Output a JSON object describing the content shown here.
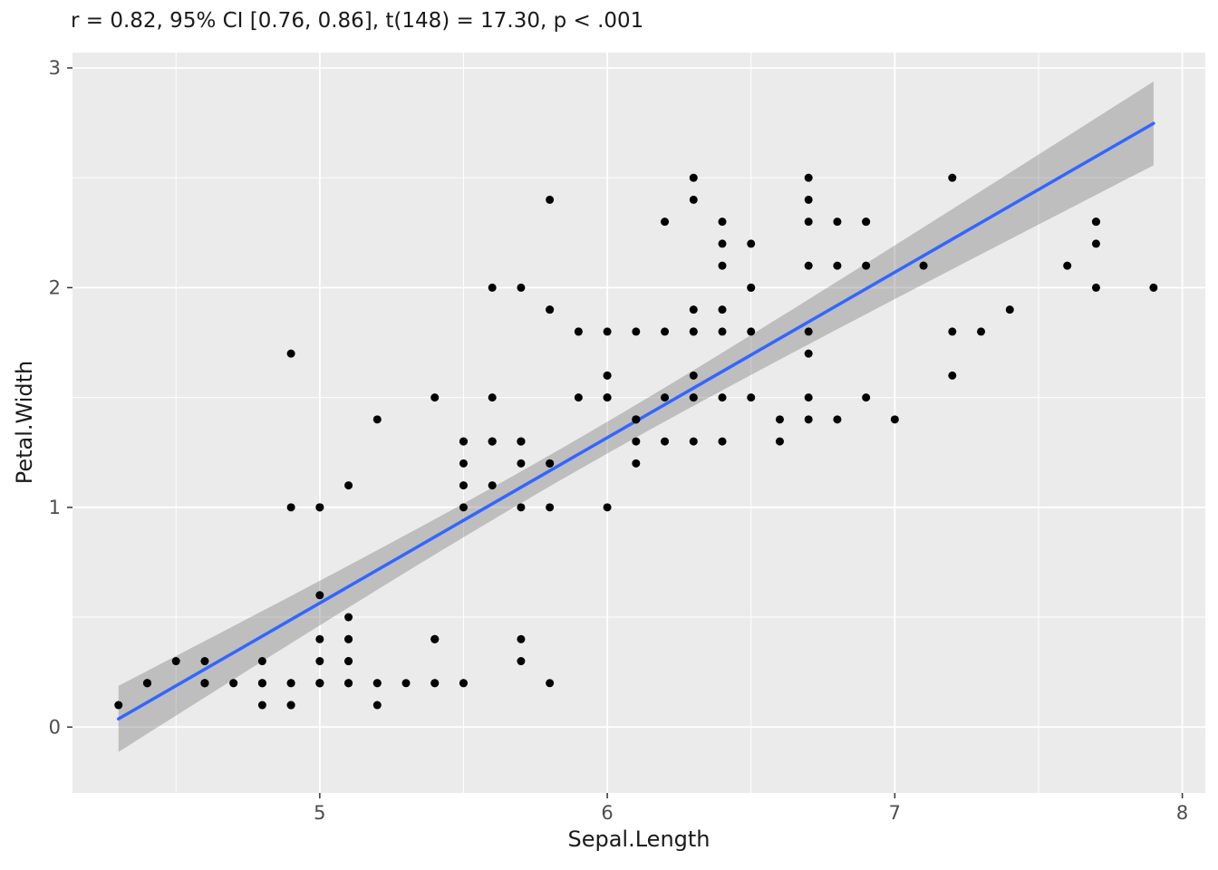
{
  "figure": {
    "subtitle": "r = 0.82, 95% CI [0.76, 0.86], t(148) = 17.30, p < .001"
  },
  "chart_data": {
    "type": "scatter",
    "title": "r = 0.82, 95% CI [0.76, 0.86], t(148) = 17.30, p < .001",
    "xlabel": "Sepal.Length",
    "ylabel": "Petal.Width",
    "xlim": [
      4.14,
      8.08
    ],
    "ylim": [
      -0.3,
      3.07
    ],
    "x_ticks": [
      5,
      6,
      7,
      8
    ],
    "y_ticks": [
      0,
      1,
      2,
      3
    ],
    "x_minor_ticks": [
      4.5,
      5.5,
      6.5,
      7.5
    ],
    "y_minor_ticks": [
      0.5,
      1.5,
      2.5
    ],
    "grid": true,
    "legend": "none",
    "stats": {
      "r": 0.82,
      "ci_level": 0.95,
      "ci_low": 0.76,
      "ci_high": 0.86,
      "df": 148,
      "t": 17.3,
      "p": "< .001"
    },
    "regression": {
      "slope": 0.7529,
      "intercept": -3.2002,
      "x_range": [
        4.3,
        7.9
      ],
      "ci": {
        "level": 0.95,
        "t_crit": 1.976,
        "n": 150,
        "mean_x": 5.8433,
        "sxx": 102.17,
        "residual_se": 0.44
      }
    },
    "points": [
      [
        5.1,
        0.2
      ],
      [
        4.9,
        0.2
      ],
      [
        4.7,
        0.2
      ],
      [
        4.6,
        0.2
      ],
      [
        5.0,
        0.2
      ],
      [
        5.4,
        0.4
      ],
      [
        4.6,
        0.3
      ],
      [
        5.0,
        0.2
      ],
      [
        4.4,
        0.2
      ],
      [
        4.9,
        0.1
      ],
      [
        5.4,
        0.2
      ],
      [
        4.8,
        0.2
      ],
      [
        4.8,
        0.1
      ],
      [
        4.3,
        0.1
      ],
      [
        5.8,
        0.2
      ],
      [
        5.7,
        0.4
      ],
      [
        5.4,
        0.4
      ],
      [
        5.1,
        0.3
      ],
      [
        5.7,
        0.3
      ],
      [
        5.1,
        0.3
      ],
      [
        5.4,
        0.2
      ],
      [
        5.1,
        0.4
      ],
      [
        4.6,
        0.2
      ],
      [
        5.1,
        0.5
      ],
      [
        4.8,
        0.2
      ],
      [
        5.0,
        0.2
      ],
      [
        5.0,
        0.4
      ],
      [
        5.2,
        0.2
      ],
      [
        5.2,
        0.2
      ],
      [
        4.7,
        0.2
      ],
      [
        4.8,
        0.2
      ],
      [
        5.4,
        0.4
      ],
      [
        5.2,
        0.1
      ],
      [
        5.5,
        0.2
      ],
      [
        4.9,
        0.2
      ],
      [
        5.0,
        0.2
      ],
      [
        5.5,
        0.2
      ],
      [
        4.9,
        0.1
      ],
      [
        4.4,
        0.2
      ],
      [
        5.1,
        0.2
      ],
      [
        5.0,
        0.3
      ],
      [
        4.5,
        0.3
      ],
      [
        4.4,
        0.2
      ],
      [
        5.0,
        0.6
      ],
      [
        5.1,
        0.4
      ],
      [
        4.8,
        0.3
      ],
      [
        5.1,
        0.2
      ],
      [
        4.6,
        0.2
      ],
      [
        5.3,
        0.2
      ],
      [
        5.0,
        0.2
      ],
      [
        7.0,
        1.4
      ],
      [
        6.4,
        1.5
      ],
      [
        6.9,
        1.5
      ],
      [
        5.5,
        1.3
      ],
      [
        6.5,
        1.5
      ],
      [
        5.7,
        1.3
      ],
      [
        6.3,
        1.6
      ],
      [
        4.9,
        1.0
      ],
      [
        6.6,
        1.3
      ],
      [
        5.2,
        1.4
      ],
      [
        5.0,
        1.0
      ],
      [
        5.9,
        1.5
      ],
      [
        6.0,
        1.0
      ],
      [
        6.1,
        1.4
      ],
      [
        5.6,
        1.3
      ],
      [
        6.7,
        1.4
      ],
      [
        5.6,
        1.5
      ],
      [
        5.8,
        1.0
      ],
      [
        6.2,
        1.5
      ],
      [
        5.6,
        1.1
      ],
      [
        5.9,
        1.8
      ],
      [
        6.1,
        1.3
      ],
      [
        6.3,
        1.5
      ],
      [
        6.1,
        1.2
      ],
      [
        6.4,
        1.3
      ],
      [
        6.6,
        1.4
      ],
      [
        6.8,
        1.4
      ],
      [
        6.7,
        1.7
      ],
      [
        6.0,
        1.5
      ],
      [
        5.7,
        1.0
      ],
      [
        5.5,
        1.1
      ],
      [
        5.5,
        1.0
      ],
      [
        5.8,
        1.2
      ],
      [
        6.0,
        1.6
      ],
      [
        5.4,
        1.5
      ],
      [
        6.0,
        1.6
      ],
      [
        6.7,
        1.5
      ],
      [
        6.3,
        1.3
      ],
      [
        5.6,
        1.3
      ],
      [
        5.5,
        1.3
      ],
      [
        5.5,
        1.2
      ],
      [
        6.1,
        1.4
      ],
      [
        5.8,
        1.2
      ],
      [
        5.0,
        1.0
      ],
      [
        5.6,
        1.3
      ],
      [
        5.7,
        1.2
      ],
      [
        5.7,
        1.3
      ],
      [
        6.2,
        1.3
      ],
      [
        5.1,
        1.1
      ],
      [
        5.7,
        1.3
      ],
      [
        6.3,
        2.5
      ],
      [
        5.8,
        1.9
      ],
      [
        7.1,
        2.1
      ],
      [
        6.3,
        1.8
      ],
      [
        6.5,
        2.2
      ],
      [
        7.6,
        2.1
      ],
      [
        4.9,
        1.7
      ],
      [
        7.3,
        1.8
      ],
      [
        6.7,
        1.8
      ],
      [
        7.2,
        2.5
      ],
      [
        6.5,
        2.0
      ],
      [
        6.4,
        1.9
      ],
      [
        6.8,
        2.1
      ],
      [
        5.7,
        2.0
      ],
      [
        5.8,
        2.4
      ],
      [
        6.4,
        2.3
      ],
      [
        6.5,
        1.8
      ],
      [
        7.7,
        2.2
      ],
      [
        7.7,
        2.3
      ],
      [
        6.0,
        1.5
      ],
      [
        6.9,
        2.3
      ],
      [
        5.6,
        2.0
      ],
      [
        7.7,
        2.0
      ],
      [
        6.3,
        1.8
      ],
      [
        6.7,
        2.1
      ],
      [
        7.2,
        1.8
      ],
      [
        6.2,
        1.8
      ],
      [
        6.1,
        1.8
      ],
      [
        6.4,
        2.1
      ],
      [
        7.2,
        1.6
      ],
      [
        7.4,
        1.9
      ],
      [
        7.9,
        2.0
      ],
      [
        6.4,
        2.2
      ],
      [
        6.3,
        1.5
      ],
      [
        6.1,
        1.4
      ],
      [
        7.7,
        2.3
      ],
      [
        6.3,
        2.4
      ],
      [
        6.4,
        1.8
      ],
      [
        6.0,
        1.8
      ],
      [
        6.9,
        2.1
      ],
      [
        6.7,
        2.4
      ],
      [
        6.9,
        2.3
      ],
      [
        5.8,
        1.9
      ],
      [
        6.8,
        2.3
      ],
      [
        6.7,
        2.5
      ],
      [
        6.7,
        2.3
      ],
      [
        6.3,
        1.9
      ],
      [
        6.5,
        2.0
      ],
      [
        6.2,
        2.3
      ],
      [
        5.9,
        1.8
      ]
    ],
    "colors": {
      "point": "#000000",
      "line": "#3366FF",
      "ribbon": "rgba(85,85,85,0.30)",
      "panel": "#EBEBEB",
      "grid": "#FFFFFF",
      "tick_mark": "#333333",
      "tick_text": "#4D4D4D",
      "label_text": "#1a1a1a"
    }
  }
}
